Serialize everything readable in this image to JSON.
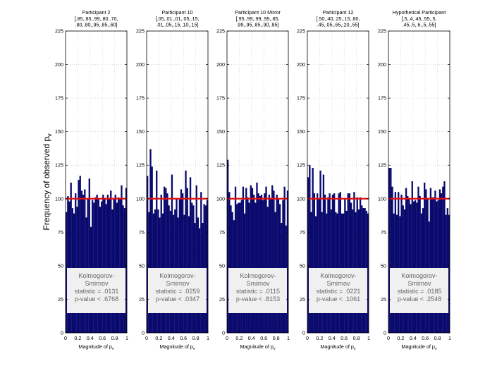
{
  "figure": {
    "ylabel": "Frequency of observed p",
    "ylabel_sub": "v",
    "xlabel": "Magnitude of p",
    "xlabel_sub": "v",
    "yticks": [
      "0",
      "25",
      "50",
      "75",
      "100",
      "125",
      "150",
      "175",
      "200",
      "225"
    ],
    "xticks": [
      "0",
      "0.2",
      "0.4",
      "0.6",
      "0.8",
      "1"
    ]
  },
  "colors": {
    "bar": "#0a0a6e",
    "reference_line": "#e01010",
    "stats_box": "#f0f0f0",
    "grid": "#c8c8c8"
  },
  "chart_data": [
    {
      "type": "bar",
      "title": "Participant 2",
      "subtitle_lines": [
        "[.85,.85,.99,.80,.70,",
        ".80,.80,.95,.85,.60]"
      ],
      "x_range": [
        0,
        1
      ],
      "ylim": [
        0,
        225
      ],
      "bins": 40,
      "reference_line": 100,
      "ks_lines": [
        "Kolmogorov-",
        "Smirnov",
        "statistic = .0131",
        "p-value < .6768"
      ],
      "values": [
        90,
        102,
        98,
        112,
        93,
        89,
        104,
        94,
        114,
        117,
        106,
        103,
        107,
        86,
        100,
        115,
        79,
        99,
        97,
        101,
        103,
        100,
        94,
        98,
        103,
        100,
        96,
        103,
        100,
        106,
        92,
        100,
        103,
        97,
        101,
        100,
        110,
        95,
        93,
        108
      ]
    },
    {
      "type": "bar",
      "title": "Participant 10",
      "subtitle_lines": [
        "[.05,.01,.01,.05,.15,",
        ".01,.05,.15,.10,.15]"
      ],
      "x_range": [
        0,
        1
      ],
      "ylim": [
        0,
        225
      ],
      "bins": 40,
      "reference_line": 100,
      "ks_lines": [
        "Kolmogorov-",
        "Smirnov",
        "statistic = .0259",
        "p-value < .0347"
      ],
      "values": [
        117,
        90,
        137,
        124,
        89,
        92,
        121,
        92,
        86,
        103,
        89,
        109,
        108,
        104,
        95,
        91,
        118,
        88,
        92,
        100,
        86,
        100,
        107,
        104,
        88,
        121,
        108,
        87,
        116,
        97,
        95,
        82,
        110,
        86,
        78,
        105,
        82,
        96,
        95,
        99
      ]
    },
    {
      "type": "bar",
      "title": "Participant 10 Mirror",
      "subtitle_lines": [
        "[.95,.99,.99,.95,.85,",
        ".99,.95,.85,.90,.85]"
      ],
      "x_range": [
        0,
        1
      ],
      "ylim": [
        0,
        225
      ],
      "bins": 40,
      "reference_line": 100,
      "ks_lines": [
        "Kolmogorov-",
        "Smirnov",
        "statistic = .0115",
        "p-value < .8153"
      ],
      "values": [
        129,
        105,
        95,
        90,
        84,
        109,
        96,
        97,
        97,
        99,
        109,
        89,
        108,
        101,
        97,
        110,
        108,
        103,
        97,
        112,
        104,
        102,
        103,
        99,
        104,
        109,
        94,
        103,
        100,
        110,
        106,
        90,
        103,
        100,
        96,
        82,
        99,
        109,
        80,
        106
      ]
    },
    {
      "type": "bar",
      "title": "Participant 12",
      "subtitle_lines": [
        "[.50,.40,.25,.15,.80,",
        ".45,.05,.65,.20,.55]"
      ],
      "x_range": [
        0,
        1
      ],
      "ylim": [
        0,
        225
      ],
      "bins": 40,
      "reference_line": 100,
      "ks_lines": [
        "Kolmogorov-",
        "Smirnov",
        "statistic = .0221",
        "p-value < .1061"
      ],
      "values": [
        116,
        125,
        90,
        123,
        104,
        87,
        104,
        100,
        121,
        90,
        118,
        103,
        89,
        101,
        104,
        92,
        103,
        104,
        90,
        89,
        104,
        105,
        89,
        89,
        100,
        91,
        104,
        104,
        97,
        92,
        105,
        90,
        101,
        92,
        101,
        95,
        93,
        93,
        91,
        89
      ]
    },
    {
      "type": "bar",
      "title": "Hypothetical Participant",
      "subtitle_lines": [
        "[.5,.4,.45,.55,.5,",
        ".45,.5,.6,.5,.55]"
      ],
      "x_range": [
        0,
        1
      ],
      "ylim": [
        0,
        225
      ],
      "bins": 40,
      "reference_line": 100,
      "ks_lines": [
        "Kolmogorov-",
        "Smirnov",
        "statistic = .0185",
        "p-value < .2548"
      ],
      "values": [
        123,
        123,
        109,
        89,
        105,
        88,
        105,
        87,
        103,
        95,
        92,
        108,
        102,
        100,
        96,
        113,
        98,
        99,
        97,
        109,
        102,
        89,
        93,
        112,
        107,
        100,
        83,
        108,
        101,
        101,
        106,
        98,
        99,
        107,
        104,
        109,
        113,
        88,
        93,
        88
      ]
    }
  ]
}
